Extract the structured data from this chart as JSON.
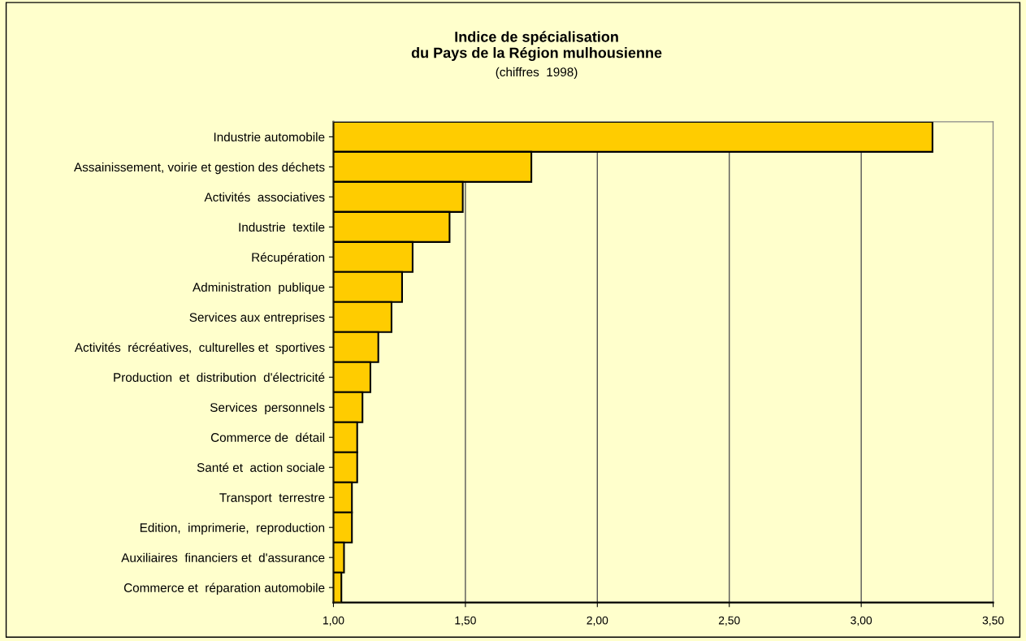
{
  "chart_data": {
    "type": "bar",
    "orientation": "horizontal",
    "title": "Indice de spécialisation\ndu Pays de la Région mulhousienne",
    "subtitle": "(chiffres  1998)",
    "categories": [
      "Industrie automobile",
      "Assainissement, voirie et gestion des déchets",
      "Activités  associatives",
      "Industrie  textile",
      "Récupération",
      "Administration  publique",
      "Services aux entreprises",
      "Activités  récréatives,  culturelles et  sportives",
      "Production  et  distribution  d'électricité",
      "Services  personnels",
      "Commerce de  détail",
      "Santé et  action sociale",
      "Transport  terrestre",
      "Edition,  imprimerie,  reproduction",
      "Auxiliaires  financiers et  d'assurance",
      "Commerce et  réparation automobile"
    ],
    "values": [
      3.27,
      1.75,
      1.49,
      1.44,
      1.3,
      1.26,
      1.22,
      1.17,
      1.14,
      1.11,
      1.09,
      1.09,
      1.07,
      1.07,
      1.04,
      1.03
    ],
    "color": "#ffcc00",
    "xlim": [
      1,
      3.5
    ],
    "xticks": [
      {
        "value": 1,
        "label": "1,00"
      },
      {
        "value": 1.5,
        "label": "1,50"
      },
      {
        "value": 2,
        "label": "2,00"
      },
      {
        "value": 2.5,
        "label": "2,50"
      },
      {
        "value": 3,
        "label": "3,00"
      },
      {
        "value": 3.5,
        "label": "3,50"
      }
    ],
    "grid": "x",
    "legend": false
  }
}
